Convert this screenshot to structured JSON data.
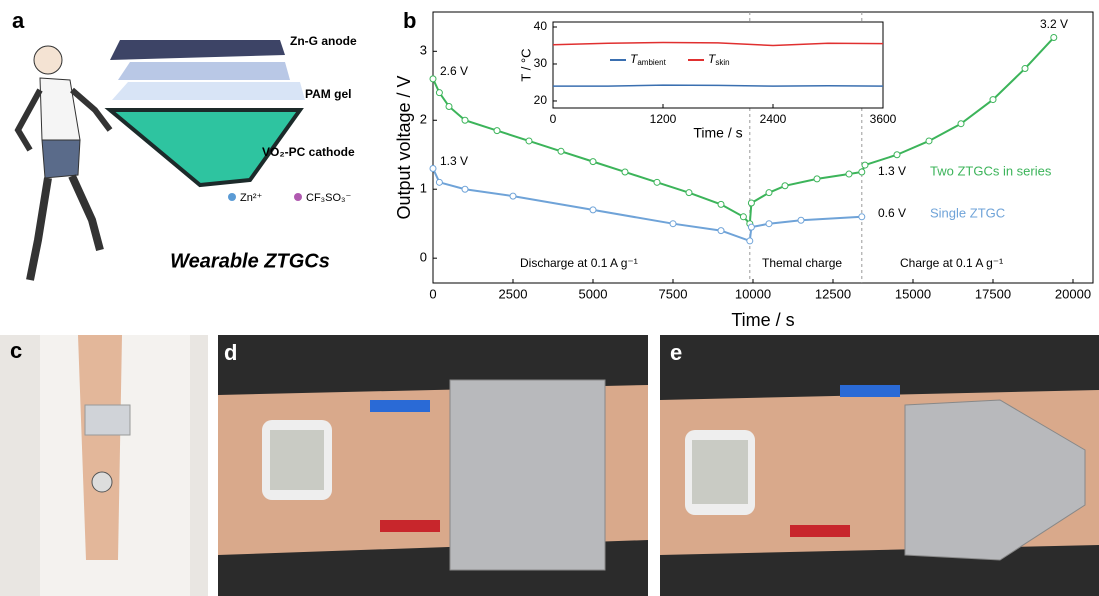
{
  "panel_labels": [
    "a",
    "b",
    "c",
    "d",
    "e"
  ],
  "panel_a": {
    "layers": [
      "Zn-G anode",
      "PAM gel",
      "VO₂-PC cathode"
    ],
    "ions": [
      "Zn²⁺",
      "CF₃SO₃⁻"
    ],
    "caption": "Wearable ZTGCs"
  },
  "chart_data": [
    {
      "type": "line",
      "xlabel": "Time / s",
      "ylabel": "Output voltage / V",
      "xlim": [
        0,
        20625
      ],
      "ylim": [
        -0.36,
        3.57
      ],
      "xticks": [
        0,
        2500,
        5000,
        7500,
        10000,
        12500,
        15000,
        17500,
        20000
      ],
      "yticks": [
        0,
        1,
        2,
        3
      ],
      "series": [
        {
          "name": "Two ZTGCs in series",
          "color": "#3cb45a",
          "x": [
            0,
            200,
            500,
            1000,
            2000,
            3000,
            4000,
            5000,
            6000,
            7000,
            8000,
            9000,
            9700,
            9900,
            9950,
            10500,
            11000,
            12000,
            13000,
            13400,
            13500,
            14500,
            15500,
            16500,
            17500,
            18500,
            19400
          ],
          "values": [
            2.6,
            2.4,
            2.2,
            2.0,
            1.85,
            1.7,
            1.55,
            1.4,
            1.25,
            1.1,
            0.95,
            0.78,
            0.6,
            0.5,
            0.8,
            0.95,
            1.05,
            1.15,
            1.22,
            1.25,
            1.35,
            1.5,
            1.7,
            1.95,
            2.3,
            2.75,
            3.2
          ]
        },
        {
          "name": "Single ZTGC",
          "color": "#6fa3d8",
          "x": [
            0,
            200,
            1000,
            2500,
            5000,
            7500,
            9000,
            9900,
            9950,
            10500,
            11500,
            13400
          ],
          "values": [
            1.3,
            1.1,
            1.0,
            0.9,
            0.7,
            0.5,
            0.4,
            0.25,
            0.45,
            0.5,
            0.55,
            0.6
          ]
        }
      ],
      "dividers": [
        9900,
        13400
      ],
      "annotations": [
        "2.6 V",
        "1.3 V",
        "3.2 V",
        "1.3 V",
        "0.6 V",
        "Discharge at 0.1 A g⁻¹",
        "Themal charge",
        "Charge at 0.1 A g⁻¹"
      ]
    },
    {
      "type": "line",
      "xlabel": "Time / s",
      "ylabel": "T / °C",
      "xlim": [
        0,
        3600
      ],
      "ylim": [
        18.1,
        41.35
      ],
      "xticks": [
        0,
        1200,
        2400,
        3600
      ],
      "yticks": [
        20,
        30,
        40
      ],
      "series": [
        {
          "name": "T",
          "subscript": "ambient",
          "color": "#3a6fb0",
          "x": [
            0,
            600,
            1200,
            1800,
            2400,
            3000,
            3600
          ],
          "values": [
            24,
            24,
            24.3,
            24.2,
            24,
            24.1,
            24
          ]
        },
        {
          "name": "T",
          "subscript": "skin",
          "color": "#e03030",
          "x": [
            0,
            600,
            1200,
            1800,
            2400,
            3000,
            3600
          ],
          "values": [
            35.2,
            35.6,
            35.8,
            35.7,
            35.0,
            35.6,
            35.5
          ]
        }
      ]
    }
  ]
}
